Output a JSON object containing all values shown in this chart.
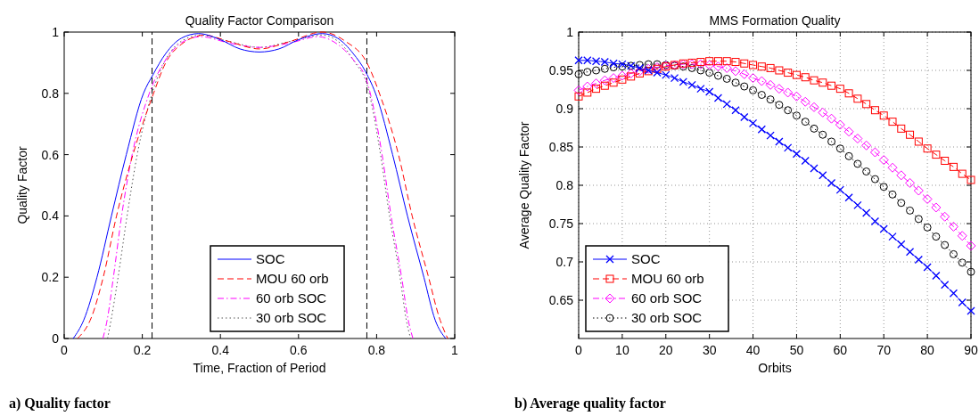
{
  "chart_data": [
    {
      "type": "line",
      "title": "Quality Factor Comparison",
      "xlabel": "Time, Fraction of Period",
      "ylabel": "Quality Factor",
      "xlim": [
        0,
        1
      ],
      "ylim": [
        0,
        1
      ],
      "xticks": [
        0,
        0.2,
        0.4,
        0.6,
        0.8,
        1
      ],
      "yticks": [
        0,
        0.2,
        0.4,
        0.6,
        0.8,
        1
      ],
      "grid": false,
      "legend": "bottom",
      "marker": "none",
      "ref_lines": [
        {
          "axis": "x",
          "value": 0.225,
          "color": "#000000",
          "line_style": "dashed"
        },
        {
          "axis": "x",
          "value": 0.775,
          "color": "#000000",
          "line_style": "dashed"
        }
      ],
      "annotations": [
        "a) Quality factor"
      ],
      "series": [
        {
          "name": "SOC",
          "color": "#0000ff",
          "line_style": "solid",
          "x": [
            0.023,
            0.05,
            0.084,
            0.121,
            0.159,
            0.203,
            0.227,
            0.26,
            0.3,
            0.344,
            0.4,
            0.45,
            0.5,
            0.55,
            0.6,
            0.661,
            0.7,
            0.74,
            0.772,
            0.8,
            0.841,
            0.879,
            0.921,
            0.95,
            0.977
          ],
          "values": [
            0,
            0.06,
            0.2,
            0.4,
            0.6,
            0.8,
            0.86,
            0.93,
            0.98,
            0.995,
            0.975,
            0.945,
            0.935,
            0.945,
            0.975,
            0.995,
            0.98,
            0.93,
            0.87,
            0.79,
            0.6,
            0.4,
            0.2,
            0.06,
            0
          ]
        },
        {
          "name": "MOU 60 orb",
          "color": "#ff0000",
          "line_style": "dashed",
          "x": [
            0.034,
            0.07,
            0.1,
            0.134,
            0.176,
            0.226,
            0.26,
            0.3,
            0.36,
            0.42,
            0.5,
            0.58,
            0.66,
            0.72,
            0.775,
            0.81,
            0.856,
            0.891,
            0.933,
            0.96,
            0.982
          ],
          "values": [
            0,
            0.07,
            0.2,
            0.4,
            0.6,
            0.79,
            0.9,
            0.96,
            0.99,
            0.97,
            0.945,
            0.97,
            1,
            0.97,
            0.9,
            0.79,
            0.6,
            0.4,
            0.2,
            0.07,
            0
          ]
        },
        {
          "name": "60 orb SOC",
          "color": "#ff00ff",
          "line_style": "dashdot",
          "x": [
            0.099,
            0.11,
            0.126,
            0.147,
            0.174,
            0.218,
            0.26,
            0.3,
            0.35,
            0.42,
            0.5,
            0.58,
            0.65,
            0.7,
            0.74,
            0.775,
            0.814,
            0.837,
            0.864,
            0.881,
            0.893
          ],
          "values": [
            0,
            0.06,
            0.2,
            0.4,
            0.6,
            0.8,
            0.91,
            0.965,
            0.985,
            0.965,
            0.95,
            0.965,
            0.985,
            0.96,
            0.91,
            0.84,
            0.6,
            0.4,
            0.2,
            0.06,
            0
          ]
        },
        {
          "name": "30 orb SOC",
          "color": "#555555",
          "line_style": "dotted",
          "x": [
            0.111,
            0.12,
            0.138,
            0.161,
            0.187,
            0.225,
            0.26,
            0.3,
            0.35,
            0.42,
            0.5,
            0.58,
            0.66,
            0.71,
            0.745,
            0.775,
            0.81,
            0.833,
            0.86,
            0.876,
            0.887
          ],
          "values": [
            0,
            0.06,
            0.2,
            0.4,
            0.6,
            0.8,
            0.91,
            0.97,
            0.99,
            0.97,
            0.95,
            0.97,
            0.99,
            0.96,
            0.9,
            0.83,
            0.6,
            0.4,
            0.2,
            0.06,
            0
          ]
        }
      ]
    },
    {
      "type": "line",
      "title": "MMS Formation Quality",
      "xlabel": "Orbits",
      "ylabel": "Average Quality Factor",
      "xlim": [
        0,
        90
      ],
      "ylim": [
        0.6,
        1
      ],
      "xticks": [
        0,
        10,
        20,
        30,
        40,
        50,
        60,
        70,
        80,
        90
      ],
      "yticks": [
        0.65,
        0.7,
        0.75,
        0.8,
        0.85,
        0.9,
        0.95,
        1
      ],
      "grid": true,
      "legend": "bottom left",
      "annotations": [
        "b) Average quality factor"
      ],
      "x": [
        0,
        2,
        4,
        6,
        8,
        10,
        12,
        14,
        16,
        18,
        20,
        22,
        24,
        26,
        28,
        30,
        32,
        34,
        36,
        38,
        40,
        42,
        44,
        46,
        48,
        50,
        52,
        54,
        56,
        58,
        60,
        62,
        64,
        66,
        68,
        70,
        72,
        74,
        76,
        78,
        80,
        82,
        84,
        86,
        88,
        90
      ],
      "series": [
        {
          "name": "SOC",
          "color": "#0000ff",
          "line_style": "solid",
          "marker": "cross",
          "values": [
            0.963,
            0.963,
            0.962,
            0.961,
            0.959,
            0.958,
            0.956,
            0.953,
            0.95,
            0.947,
            0.944,
            0.94,
            0.935,
            0.931,
            0.926,
            0.922,
            0.914,
            0.906,
            0.898,
            0.889,
            0.881,
            0.873,
            0.865,
            0.857,
            0.849,
            0.841,
            0.832,
            0.822,
            0.813,
            0.803,
            0.794,
            0.784,
            0.774,
            0.764,
            0.753,
            0.743,
            0.733,
            0.723,
            0.713,
            0.703,
            0.693,
            0.682,
            0.67,
            0.659,
            0.647,
            0.636
          ]
        },
        {
          "name": "MOU 60 orb",
          "color": "#ff0000",
          "line_style": "dashed",
          "marker": "square",
          "values": [
            0.916,
            0.921,
            0.926,
            0.93,
            0.934,
            0.938,
            0.942,
            0.946,
            0.949,
            0.952,
            0.955,
            0.957,
            0.959,
            0.96,
            0.961,
            0.962,
            0.962,
            0.962,
            0.961,
            0.959,
            0.957,
            0.955,
            0.953,
            0.95,
            0.947,
            0.944,
            0.941,
            0.937,
            0.934,
            0.93,
            0.926,
            0.92,
            0.913,
            0.906,
            0.898,
            0.891,
            0.883,
            0.874,
            0.866,
            0.857,
            0.848,
            0.84,
            0.832,
            0.824,
            0.815,
            0.807
          ]
        },
        {
          "name": "60 orb SOC",
          "color": "#ff00ff",
          "line_style": "dashdot",
          "marker": "diamond",
          "values": [
            0.924,
            0.929,
            0.933,
            0.937,
            0.94,
            0.943,
            0.946,
            0.949,
            0.952,
            0.954,
            0.956,
            0.957,
            0.958,
            0.958,
            0.958,
            0.957,
            0.955,
            0.953,
            0.949,
            0.945,
            0.94,
            0.936,
            0.931,
            0.926,
            0.921,
            0.916,
            0.909,
            0.902,
            0.895,
            0.887,
            0.879,
            0.87,
            0.861,
            0.852,
            0.843,
            0.833,
            0.823,
            0.813,
            0.803,
            0.793,
            0.782,
            0.771,
            0.759,
            0.746,
            0.734,
            0.721
          ]
        },
        {
          "name": "30 orb SOC",
          "color": "#000000",
          "line_style": "dotted",
          "marker": "circle",
          "values": [
            0.945,
            0.948,
            0.95,
            0.952,
            0.954,
            0.955,
            0.956,
            0.957,
            0.958,
            0.958,
            0.957,
            0.956,
            0.955,
            0.953,
            0.95,
            0.947,
            0.943,
            0.939,
            0.934,
            0.929,
            0.924,
            0.918,
            0.912,
            0.905,
            0.898,
            0.891,
            0.883,
            0.874,
            0.866,
            0.857,
            0.848,
            0.838,
            0.828,
            0.818,
            0.808,
            0.798,
            0.788,
            0.777,
            0.767,
            0.756,
            0.745,
            0.733,
            0.722,
            0.71,
            0.699,
            0.687
          ]
        }
      ]
    }
  ]
}
